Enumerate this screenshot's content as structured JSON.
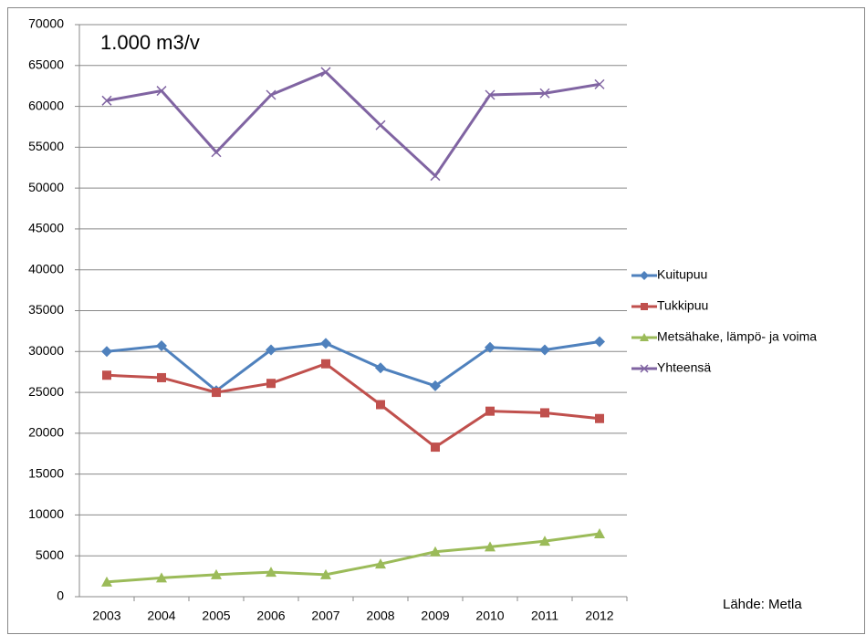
{
  "chart_data": {
    "type": "line",
    "annotations": [
      "1.000 m3/v",
      "Lähde:  Metla"
    ],
    "categories": [
      "2003",
      "2004",
      "2005",
      "2006",
      "2007",
      "2008",
      "2009",
      "2010",
      "2011",
      "2012"
    ],
    "series": [
      {
        "name": "Kuitupuu",
        "color": "#4f81bd",
        "marker": "diamond",
        "values": [
          30000,
          30700,
          25200,
          30200,
          31000,
          28000,
          25800,
          30500,
          30200,
          31200
        ]
      },
      {
        "name": "Tukkipuu",
        "color": "#c0504d",
        "marker": "square",
        "values": [
          27100,
          26800,
          25000,
          26100,
          28500,
          23500,
          18300,
          22700,
          22500,
          21800
        ]
      },
      {
        "name": "Metsähake, lämpö- ja voima",
        "color": "#9bbb59",
        "marker": "triangle",
        "values": [
          1800,
          2300,
          2700,
          3000,
          2700,
          4000,
          5500,
          6100,
          6800,
          7700
        ]
      },
      {
        "name": "Yhteensä",
        "color": "#8064a2",
        "marker": "x",
        "values": [
          60700,
          61900,
          54400,
          61400,
          64200,
          57700,
          51500,
          61400,
          61600,
          62700
        ]
      }
    ],
    "ylim": [
      0,
      70000
    ],
    "yticks": [
      0,
      5000,
      10000,
      15000,
      20000,
      25000,
      30000,
      35000,
      40000,
      45000,
      50000,
      55000,
      60000,
      65000,
      70000
    ],
    "grid": true,
    "legend": "right"
  }
}
